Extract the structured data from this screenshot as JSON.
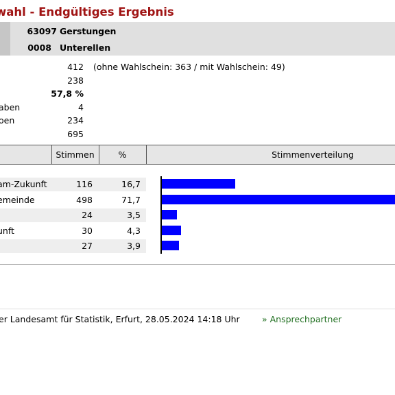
{
  "title": "wahl - Endgültiges Ergebnis",
  "region": {
    "rows": [
      {
        "code": "63097",
        "name": "Gerstungen"
      },
      {
        "code": "0008",
        "name": "Unterellen"
      }
    ]
  },
  "stats": {
    "rows": [
      {
        "label": "",
        "value": "412"
      },
      {
        "label": "",
        "value": "238"
      },
      {
        "label": "",
        "value": "57,8 %"
      },
      {
        "label": "aben",
        "value": "4"
      },
      {
        "label": "oen",
        "value": "234"
      },
      {
        "label": "",
        "value": "695"
      }
    ],
    "note": "(ohne Wahlschein: 363 / mit Wahlschein: 49)"
  },
  "table": {
    "headers": {
      "votes": "Stimmen",
      "pct": "%",
      "dist": "Stimmenverteilung"
    }
  },
  "chart_data": {
    "type": "bar",
    "orientation": "horizontal",
    "categories": [
      "am-Zukunft",
      "emeinde",
      "",
      "unft",
      ""
    ],
    "votes": [
      "116",
      "498",
      "24",
      "30",
      "27"
    ],
    "percent_labels": [
      "16,7",
      "71,7",
      "3,5",
      "4,3",
      "3,9"
    ],
    "values": [
      16.7,
      71.7,
      3.5,
      4.3,
      3.9
    ],
    "color": "#0000ff",
    "grid": false
  },
  "footer": {
    "source": "er Landesamt für Statistik, Erfurt, 28.05.2024 14:18 Uhr",
    "link": "» Ansprechpartner"
  }
}
